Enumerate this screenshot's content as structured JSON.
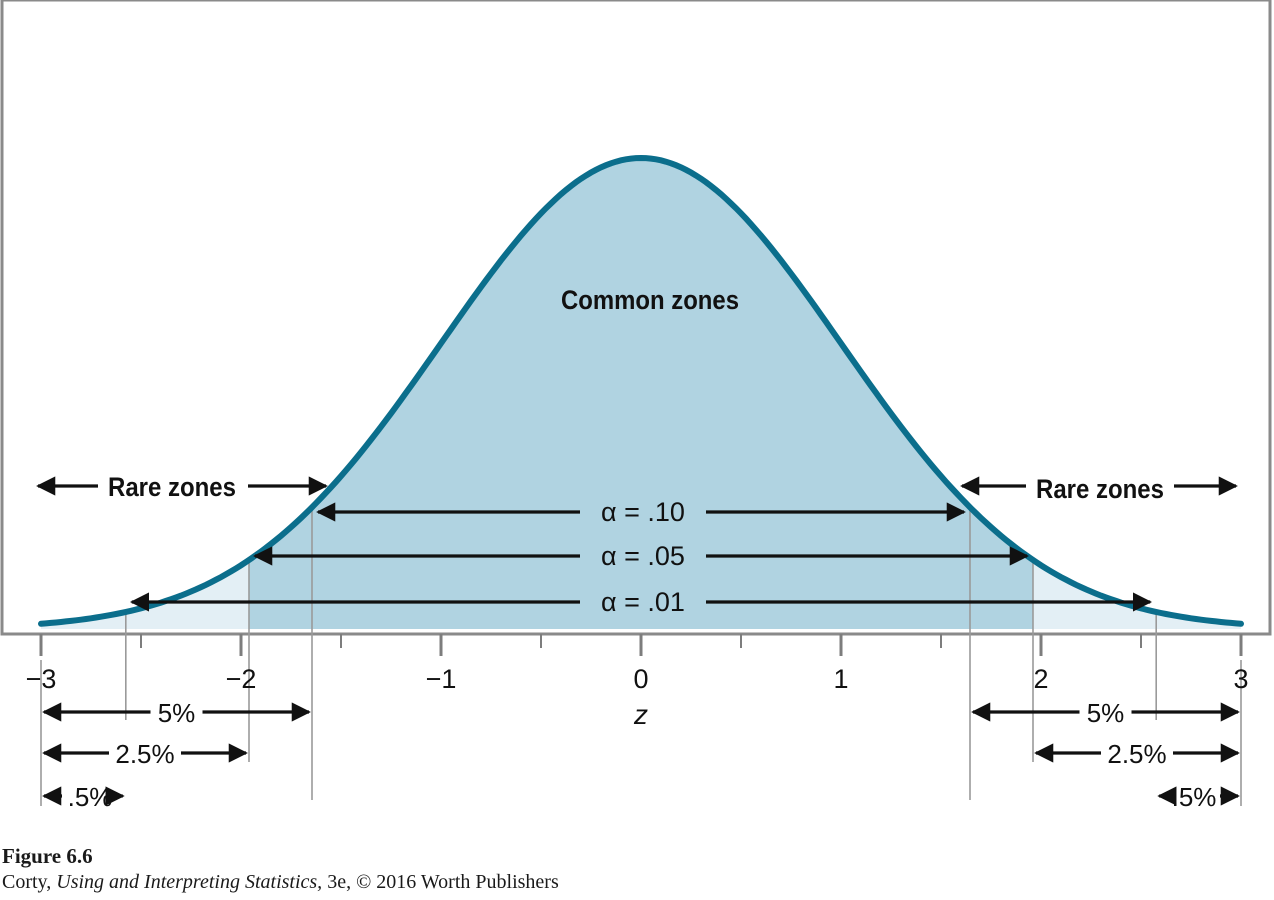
{
  "chart_data": {
    "type": "area",
    "distribution": "standard normal",
    "xlabel": "z",
    "xlim": [
      -3,
      3
    ],
    "x_ticks": [
      -3,
      -2,
      -1,
      0,
      1,
      2,
      3
    ],
    "x_tick_labels": [
      "−3",
      "−2",
      "−1",
      "0",
      "1",
      "2",
      "3"
    ],
    "minor_ticks": [
      -2.5,
      -1.5,
      -0.5,
      0.5,
      1.5,
      2.5
    ],
    "center_label": "Common zones",
    "rare_zone_labels": [
      "Rare zones",
      "Rare zones"
    ],
    "cutoffs": [
      {
        "alpha_label": "α = .10",
        "z": 1.645,
        "tail_pct_label": "5%"
      },
      {
        "alpha_label": "α = .05",
        "z": 1.96,
        "tail_pct_label": "2.5%"
      },
      {
        "alpha_label": "α = .01",
        "z": 2.576,
        "tail_pct_label": ".5%"
      }
    ],
    "colors": {
      "curve": "#0b6e8c",
      "common_fill": "#b0d3e1",
      "rare_fill": "#e3eff5",
      "arrow": "#111111",
      "cutoff_line": "#9a9a9a"
    }
  },
  "caption": {
    "figure_label": "Figure 6.6",
    "author": "Corty,",
    "book_title": "Using and Interpreting Statistics,",
    "edition_rest": "3e, © 2016 Worth Publishers"
  }
}
